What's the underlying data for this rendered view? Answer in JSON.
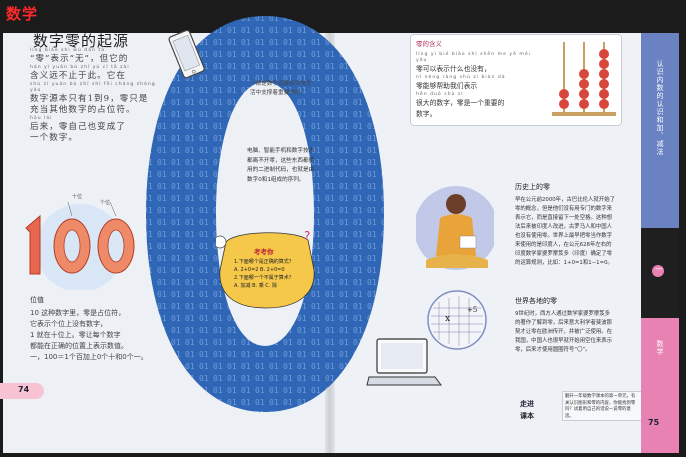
{
  "app": {
    "title": "数学"
  },
  "left": {
    "heading": "数字零的起源",
    "heading_pinyin": "líng  biǎo  shì    wú    dàn  tā",
    "intro": [
      {
        "py": "líng   biǎo  shì    wú         dàn  tā",
        "tx": "“零”表示“无”，但它的"
      },
      {
        "py": "hán yì  yuǎn bù  zhǐ  yú   cǐ      tā  zài",
        "tx": "含义远不止于此。它在"
      },
      {
        "py": "shù zì   yuán bù  zhǐ  shì  fēi  cháng zhòng yào",
        "tx": "数字源本只有1到9，零只是"
      },
      {
        "py": "",
        "tx": "充当其他数字的占位符。"
      },
      {
        "py": "hòu  lái",
        "tx": "后来，零自己也变成了"
      },
      {
        "py": "",
        "tx": "一个数字。"
      }
    ],
    "phone_note": "一部是数字运算和日常生活中支撑着重要作用。",
    "tech_note": "电脑、智能手机和数字技术都离不开零，这些东西都使用的二进制代码，也就是由数字0和1组成的序列。",
    "hundred": {
      "value": "100",
      "label_ten": "十位",
      "label_one": "个位"
    },
    "weizhi": {
      "heading": "位值",
      "text": [
        "10 这种数字里，零是占位符，",
        "它表示个位上没有数字，",
        "1 就在十位上。零让每个数字",
        "都能在正确的位置上表示数值。",
        "一，100＝1个百加上0个十和0个一。"
      ]
    },
    "quiz": {
      "title": "考考你",
      "lines": [
        "1.下面哪个是正确的算式？",
        "A. 2+0=2   B. 2+0=0",
        "2.下面哪一个不属于算术？",
        "A. 加减   B. 乘   C. 除"
      ]
    },
    "page_number": "74"
  },
  "right": {
    "def": {
      "heading": "零的含义",
      "lines": [
        "líng  yì  bié  biǎo shì  shēn  me  yě  méi  yǒu",
        "零可以表示什么也没有，",
        "nǐ  néng  ràng  shù  zì  biàn  dà",
        "零能够帮助我们表示",
        "hěn  duō  shù  zì",
        "很大的数字，零是一个重要的",
        "数字。"
      ]
    },
    "history": {
      "heading": "历史上的零",
      "text": "早在公元前2000年，古巴比伦人就开始了零的概念，但是他们没有用专门的数字来表示它，而是直接留下一处空格。这种想法后来被印度人改进，古罗马人和中国人也没有使用零。世界上最早把零当作数字来使用的是印度人，在公元628年左右的印度数学家婆罗摩笈多（印度）确定了零的运算规则，比如：1+0=1和1−1=0。"
    },
    "world": {
      "heading": "世界各地的零",
      "text": "9世纪时，西方人通过数学家婆罗摩笈多的著作了解到零，后来意大利学者斐波那契才让零在欧洲传开，并被广泛使用。在我国，中国人也很早就开始用空位来表示零，后来才使用圆圈符号“〇”。"
    },
    "zoujin": {
      "title_1": "走进",
      "title_2": "课本",
      "text": "翻开一年级数学课本的第一单元，有关认识图形和零的内容，你能找到零吗？试着用自己的话说一说零的意思。"
    },
    "tabs": {
      "top": "认识内数的认识和加、减法",
      "mid": "一",
      "bottom": "数学"
    },
    "page_number": "75"
  }
}
